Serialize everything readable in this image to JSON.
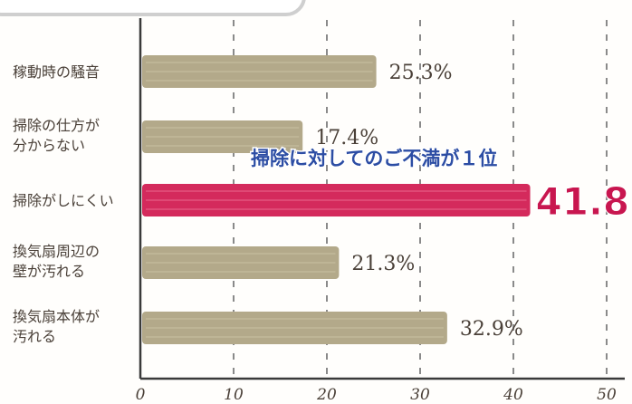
{
  "chart_data": {
    "type": "bar",
    "orientation": "horizontal",
    "categories": [
      [
        "稼動時の騒音"
      ],
      [
        "掃除の仕方が",
        "分からない"
      ],
      [
        "掃除がしにくい"
      ],
      [
        "換気扇周辺の",
        "壁が汚れる"
      ],
      [
        "換気扇本体が",
        "汚れる"
      ]
    ],
    "values": [
      25.3,
      17.4,
      41.8,
      21.3,
      32.9
    ],
    "value_labels": [
      "25.3%",
      "17.4%",
      "41.8",
      "21.3%",
      "32.9%"
    ],
    "highlight_index": 2,
    "annotation": "掃除に対してのご不満が１位",
    "xlim": [
      0,
      50
    ],
    "xticks": [
      0,
      10,
      20,
      30,
      40,
      50
    ],
    "xtick_labels": [
      "0",
      "10",
      "20",
      "30",
      "40",
      "50"
    ],
    "grid": true,
    "colors": {
      "bar": "#b3a98a",
      "highlight": "#d42a5c",
      "grid": "#8a8a8a",
      "axis": "#3a3a3a",
      "annotation": "#2c4da4"
    }
  }
}
